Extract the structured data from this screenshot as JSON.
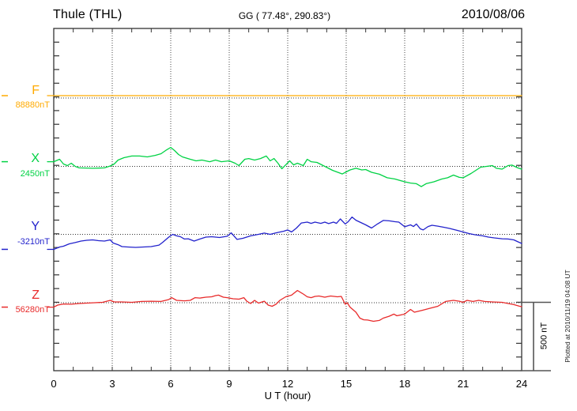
{
  "header": {
    "station": "Thule (THL)",
    "coordinates": "GG ( 77.48°, 290.83°)",
    "date": "2010/08/06"
  },
  "notes": {
    "plotted_at": "Plotted at 2010/11/19 04:08 UT"
  },
  "chart_data": {
    "type": "line",
    "title": "Thule (THL) magnetogram 2010/08/06",
    "x": {
      "label": "U T (hour)",
      "min": 0,
      "max": 24,
      "ticks": [
        0,
        3,
        6,
        9,
        12,
        15,
        18,
        21,
        24
      ],
      "gridlines": [
        3,
        6,
        9,
        12,
        15,
        18,
        21
      ]
    },
    "y_scale": {
      "bar_label": "500 nT",
      "bar_nT": 500,
      "minor_division_nT": 100
    },
    "points_format": "[hour_UT, offset_nT_from_channel_baseline]",
    "series": [
      {
        "name": "F",
        "value_label": "88880nT",
        "baseline_nT": 88880,
        "color": "#FFAA00",
        "points": [
          [
            0,
            17
          ],
          [
            24,
            17
          ]
        ]
      },
      {
        "name": "X",
        "value_label": "2450nT",
        "baseline_nT": 2450,
        "color": "#00D244",
        "points": [
          [
            0,
            34
          ],
          [
            0.3,
            52
          ],
          [
            0.5,
            17
          ],
          [
            0.7,
            6
          ],
          [
            0.9,
            23
          ],
          [
            1.1,
            0
          ],
          [
            1.3,
            -11
          ],
          [
            2,
            -14
          ],
          [
            2.6,
            -11
          ],
          [
            2.9,
            3
          ],
          [
            3.1,
            17
          ],
          [
            3.3,
            46
          ],
          [
            3.6,
            63
          ],
          [
            4,
            75
          ],
          [
            4.4,
            75
          ],
          [
            4.8,
            69
          ],
          [
            5.2,
            80
          ],
          [
            5.5,
            92
          ],
          [
            5.8,
            121
          ],
          [
            6,
            138
          ],
          [
            6.2,
            115
          ],
          [
            6.4,
            86
          ],
          [
            6.6,
            69
          ],
          [
            7,
            52
          ],
          [
            7.3,
            40
          ],
          [
            7.6,
            46
          ],
          [
            8,
            34
          ],
          [
            8.3,
            46
          ],
          [
            8.6,
            34
          ],
          [
            9,
            40
          ],
          [
            9.3,
            23
          ],
          [
            9.5,
            6
          ],
          [
            9.8,
            52
          ],
          [
            10,
            57
          ],
          [
            10.3,
            46
          ],
          [
            10.6,
            57
          ],
          [
            10.9,
            75
          ],
          [
            11.1,
            40
          ],
          [
            11.3,
            57
          ],
          [
            11.5,
            23
          ],
          [
            11.7,
            -17
          ],
          [
            11.9,
            11
          ],
          [
            12.1,
            40
          ],
          [
            12.3,
            11
          ],
          [
            12.5,
            23
          ],
          [
            12.8,
            6
          ],
          [
            13,
            52
          ],
          [
            13.2,
            34
          ],
          [
            13.5,
            29
          ],
          [
            13.9,
            0
          ],
          [
            14.3,
            -29
          ],
          [
            14.8,
            -55
          ],
          [
            15,
            -40
          ],
          [
            15.2,
            -26
          ],
          [
            15.5,
            -14
          ],
          [
            15.8,
            -26
          ],
          [
            16,
            -23
          ],
          [
            16.3,
            -43
          ],
          [
            16.7,
            -57
          ],
          [
            17.1,
            -83
          ],
          [
            17.5,
            -92
          ],
          [
            18,
            -112
          ],
          [
            18.3,
            -121
          ],
          [
            18.6,
            -126
          ],
          [
            18.85,
            -147
          ],
          [
            19.1,
            -126
          ],
          [
            19.5,
            -112
          ],
          [
            19.9,
            -92
          ],
          [
            20.2,
            -83
          ],
          [
            20.5,
            -63
          ],
          [
            20.8,
            -80
          ],
          [
            21,
            -83
          ],
          [
            21.4,
            -52
          ],
          [
            21.9,
            -6
          ],
          [
            22.2,
            0
          ],
          [
            22.5,
            6
          ],
          [
            22.7,
            -14
          ],
          [
            23,
            -20
          ],
          [
            23.3,
            6
          ],
          [
            23.5,
            9
          ],
          [
            23.8,
            -11
          ],
          [
            24,
            -20
          ]
        ]
      },
      {
        "name": "Y",
        "value_label": "-3210nT",
        "baseline_nT": -3210,
        "color": "#2222CC",
        "points": [
          [
            0,
            -109
          ],
          [
            0.3,
            -92
          ],
          [
            0.5,
            -86
          ],
          [
            0.8,
            -69
          ],
          [
            1.1,
            -60
          ],
          [
            1.4,
            -49
          ],
          [
            1.7,
            -43
          ],
          [
            2,
            -40
          ],
          [
            2.3,
            -46
          ],
          [
            2.6,
            -49
          ],
          [
            2.9,
            -40
          ],
          [
            3.05,
            -63
          ],
          [
            3.3,
            -75
          ],
          [
            3.5,
            -89
          ],
          [
            3.8,
            -92
          ],
          [
            4.2,
            -95
          ],
          [
            4.6,
            -92
          ],
          [
            5,
            -89
          ],
          [
            5.4,
            -78
          ],
          [
            5.6,
            -57
          ],
          [
            5.9,
            -20
          ],
          [
            6.1,
            0
          ],
          [
            6.3,
            -11
          ],
          [
            6.5,
            -17
          ],
          [
            6.7,
            -34
          ],
          [
            6.9,
            -32
          ],
          [
            7.2,
            -49
          ],
          [
            7.5,
            -34
          ],
          [
            7.8,
            -20
          ],
          [
            8.1,
            -17
          ],
          [
            8.5,
            -23
          ],
          [
            8.9,
            -14
          ],
          [
            9.1,
            11
          ],
          [
            9.4,
            -37
          ],
          [
            9.7,
            -29
          ],
          [
            10.1,
            -11
          ],
          [
            10.5,
            0
          ],
          [
            10.8,
            9
          ],
          [
            11.1,
            0
          ],
          [
            11.4,
            11
          ],
          [
            11.8,
            23
          ],
          [
            12,
            32
          ],
          [
            12.2,
            17
          ],
          [
            12.45,
            46
          ],
          [
            12.7,
            83
          ],
          [
            13,
            89
          ],
          [
            13.2,
            80
          ],
          [
            13.4,
            89
          ],
          [
            13.7,
            80
          ],
          [
            13.9,
            89
          ],
          [
            14.1,
            78
          ],
          [
            14.35,
            89
          ],
          [
            14.5,
            80
          ],
          [
            14.7,
            112
          ],
          [
            14.95,
            75
          ],
          [
            15.1,
            92
          ],
          [
            15.3,
            126
          ],
          [
            15.5,
            103
          ],
          [
            15.8,
            83
          ],
          [
            16,
            69
          ],
          [
            16.3,
            46
          ],
          [
            16.6,
            75
          ],
          [
            16.9,
            101
          ],
          [
            17.2,
            98
          ],
          [
            17.5,
            92
          ],
          [
            17.7,
            89
          ],
          [
            18,
            55
          ],
          [
            18.3,
            69
          ],
          [
            18.45,
            57
          ],
          [
            18.6,
            75
          ],
          [
            18.8,
            40
          ],
          [
            18.95,
            32
          ],
          [
            19.2,
            57
          ],
          [
            19.4,
            66
          ],
          [
            19.7,
            60
          ],
          [
            20,
            52
          ],
          [
            20.3,
            43
          ],
          [
            20.7,
            29
          ],
          [
            21,
            17
          ],
          [
            21.3,
            6
          ],
          [
            21.6,
            -3
          ],
          [
            22,
            -11
          ],
          [
            22.3,
            -20
          ],
          [
            22.6,
            -26
          ],
          [
            23,
            -32
          ],
          [
            23.3,
            -34
          ],
          [
            23.6,
            -40
          ],
          [
            23.85,
            -57
          ],
          [
            24,
            -66
          ]
        ]
      },
      {
        "name": "Z",
        "value_label": "56280nT",
        "baseline_nT": 56280,
        "color": "#E82A2A",
        "points": [
          [
            0,
            -32
          ],
          [
            0.2,
            -17
          ],
          [
            0.5,
            -9
          ],
          [
            0.9,
            -11
          ],
          [
            1.3,
            -6
          ],
          [
            1.7,
            -3
          ],
          [
            2.1,
            0
          ],
          [
            2.5,
            3
          ],
          [
            2.9,
            17
          ],
          [
            3.1,
            6
          ],
          [
            3.5,
            6
          ],
          [
            4,
            3
          ],
          [
            4.5,
            9
          ],
          [
            5,
            11
          ],
          [
            5.5,
            9
          ],
          [
            5.9,
            23
          ],
          [
            6.05,
            37
          ],
          [
            6.3,
            17
          ],
          [
            6.7,
            14
          ],
          [
            7,
            17
          ],
          [
            7.25,
            37
          ],
          [
            7.5,
            34
          ],
          [
            7.8,
            40
          ],
          [
            8.1,
            43
          ],
          [
            8.3,
            52
          ],
          [
            8.45,
            55
          ],
          [
            8.7,
            40
          ],
          [
            8.9,
            37
          ],
          [
            9.2,
            29
          ],
          [
            9.5,
            26
          ],
          [
            9.75,
            37
          ],
          [
            9.9,
            11
          ],
          [
            10.1,
            -6
          ],
          [
            10.3,
            17
          ],
          [
            10.5,
            -3
          ],
          [
            10.8,
            11
          ],
          [
            11,
            -17
          ],
          [
            11.2,
            -26
          ],
          [
            11.4,
            -11
          ],
          [
            11.6,
            17
          ],
          [
            11.9,
            43
          ],
          [
            12.2,
            55
          ],
          [
            12.5,
            89
          ],
          [
            12.8,
            63
          ],
          [
            13,
            43
          ],
          [
            13.2,
            37
          ],
          [
            13.4,
            46
          ],
          [
            13.6,
            49
          ],
          [
            13.9,
            40
          ],
          [
            14.2,
            49
          ],
          [
            14.55,
            43
          ],
          [
            14.75,
            46
          ],
          [
            14.85,
            17
          ],
          [
            14.95,
            -11
          ],
          [
            15.05,
            0
          ],
          [
            15.2,
            -32
          ],
          [
            15.5,
            -69
          ],
          [
            15.7,
            -112
          ],
          [
            15.9,
            -124
          ],
          [
            16.1,
            -126
          ],
          [
            16.4,
            -135
          ],
          [
            16.7,
            -129
          ],
          [
            16.9,
            -112
          ],
          [
            17.2,
            -98
          ],
          [
            17.45,
            -83
          ],
          [
            17.6,
            -95
          ],
          [
            18,
            -83
          ],
          [
            18.3,
            -49
          ],
          [
            18.5,
            -69
          ],
          [
            18.9,
            -55
          ],
          [
            19.3,
            -40
          ],
          [
            19.7,
            -26
          ],
          [
            20.1,
            9
          ],
          [
            20.5,
            17
          ],
          [
            20.8,
            11
          ],
          [
            21,
            3
          ],
          [
            21.2,
            17
          ],
          [
            21.5,
            9
          ],
          [
            21.8,
            17
          ],
          [
            22.1,
            9
          ],
          [
            22.5,
            6
          ],
          [
            23,
            3
          ],
          [
            23.2,
            -3
          ],
          [
            23.6,
            -14
          ],
          [
            23.9,
            -26
          ],
          [
            24,
            -29
          ]
        ]
      }
    ]
  }
}
